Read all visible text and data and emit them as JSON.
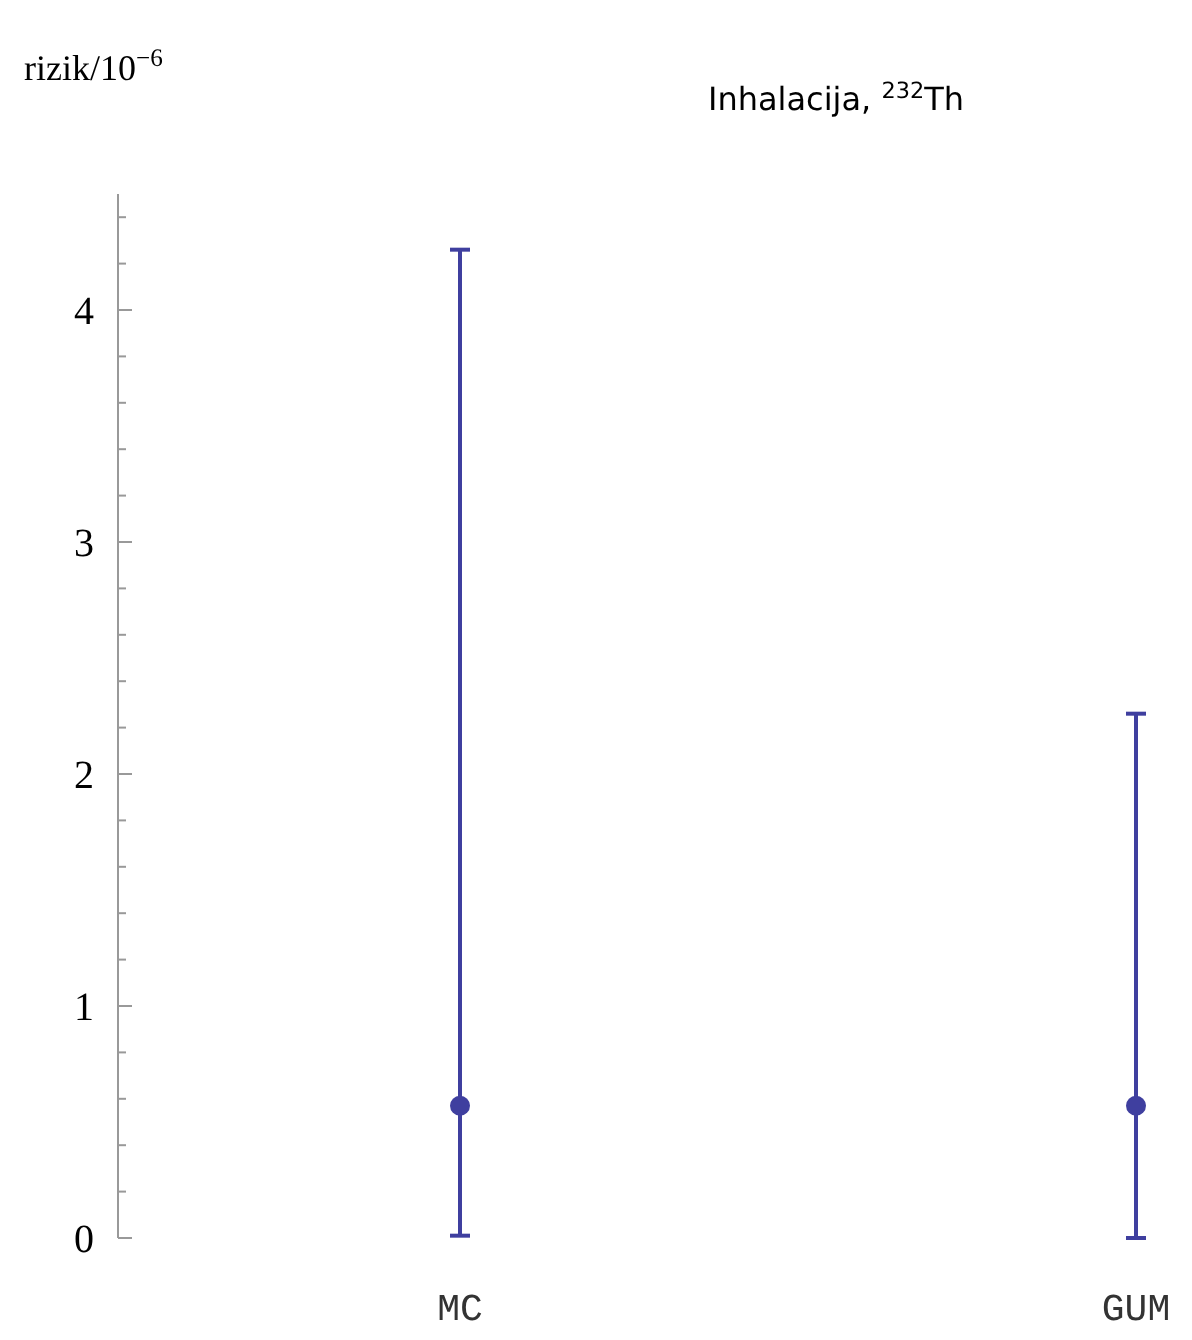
{
  "chart_data": {
    "type": "scatter",
    "title": "Inhalacija, $^{232}$Th",
    "ylabel": "rizik/10$^{−6}$",
    "categories": [
      "MC",
      "GUM"
    ],
    "series": [
      {
        "color": "#3f3f9f",
        "values": [
          0.57,
          0.57
        ],
        "errors": [
          [
            0.01,
            4.26
          ],
          [
            0,
            2.26
          ]
        ]
      }
    ],
    "marker": "circle",
    "grid": false,
    "ylim": [
      0,
      4.5
    ],
    "yticks": [
      0,
      {
        "value": 0.2,
        "label": null
      },
      {
        "value": 0.4,
        "label": null
      },
      {
        "value": 0.6,
        "label": null
      },
      {
        "value": 0.8,
        "label": null
      },
      1,
      {
        "value": 1.2,
        "label": null
      },
      {
        "value": 1.4,
        "label": null
      },
      {
        "value": 1.6,
        "label": null
      },
      {
        "value": 1.8,
        "label": null
      },
      2,
      {
        "value": 2.2,
        "label": null
      },
      {
        "value": 2.4,
        "label": null
      },
      {
        "value": 2.6,
        "label": null
      },
      {
        "value": 2.8,
        "label": null
      },
      3,
      {
        "value": 3.2,
        "label": null
      },
      {
        "value": 3.4,
        "label": null
      },
      {
        "value": 3.6,
        "label": null
      },
      {
        "value": 3.8,
        "label": null
      },
      4,
      {
        "value": 4.2,
        "label": null
      },
      {
        "value": 4.4,
        "label": null
      }
    ]
  }
}
